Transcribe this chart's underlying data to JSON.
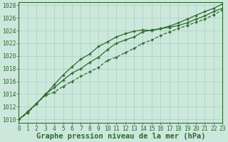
{
  "x": [
    0,
    1,
    2,
    3,
    4,
    5,
    6,
    7,
    8,
    9,
    10,
    11,
    12,
    13,
    14,
    15,
    16,
    17,
    18,
    19,
    20,
    21,
    22,
    23
  ],
  "series1": [
    1010.0,
    1011.2,
    1012.5,
    1014.0,
    1015.0,
    1016.2,
    1017.3,
    1018.0,
    1019.0,
    1019.8,
    1021.0,
    1022.0,
    1022.5,
    1023.0,
    1023.8,
    1024.1,
    1024.3,
    1024.7,
    1025.2,
    1025.8,
    1026.4,
    1027.0,
    1027.5,
    1028.2
  ],
  "series2": [
    1010.0,
    1011.2,
    1012.5,
    1013.9,
    1015.5,
    1017.0,
    1018.3,
    1019.5,
    1020.3,
    1021.5,
    1022.2,
    1023.0,
    1023.5,
    1023.9,
    1024.1,
    1024.0,
    1024.3,
    1024.5,
    1024.8,
    1025.2,
    1025.8,
    1026.3,
    1027.0,
    1027.5
  ],
  "series3": [
    1010.0,
    1011.0,
    1012.5,
    1013.8,
    1014.3,
    1015.2,
    1016.0,
    1016.8,
    1017.5,
    1018.2,
    1019.3,
    1019.8,
    1020.5,
    1021.2,
    1022.0,
    1022.5,
    1023.2,
    1023.8,
    1024.3,
    1024.8,
    1025.3,
    1025.8,
    1026.5,
    1027.2
  ],
  "line_color": "#2d6a2d",
  "marker_color": "#2d6a2d",
  "bg_color": "#cce8dc",
  "grid_color": "#a8cfc0",
  "title": "Graphe pression niveau de la mer (hPa)",
  "ylim": [
    1009.5,
    1028.5
  ],
  "yticks": [
    1010,
    1012,
    1014,
    1016,
    1018,
    1020,
    1022,
    1024,
    1026,
    1028
  ],
  "xlim": [
    0,
    23
  ],
  "xticks": [
    0,
    1,
    2,
    3,
    4,
    5,
    6,
    7,
    8,
    9,
    10,
    11,
    12,
    13,
    14,
    15,
    16,
    17,
    18,
    19,
    20,
    21,
    22,
    23
  ],
  "title_fontsize": 7.0,
  "tick_fontsize": 5.8,
  "xlabel_fontsize": 7.5
}
